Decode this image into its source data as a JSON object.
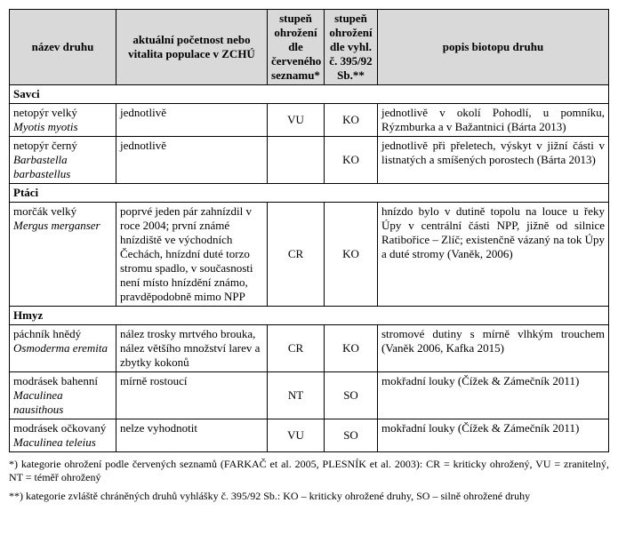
{
  "header": {
    "name": "název druhu",
    "pop": "aktuální početnost nebo vitalita populace v ZCHÚ",
    "s1": "stupeň ohrožení dle červeného seznamu*",
    "s2": "stupeň ohrožení dle vyhl. č. 395/92 Sb.**",
    "bio": "popis biotopu druhu"
  },
  "groups": {
    "savci": "Savci",
    "ptaci": "Ptáci",
    "hmyz": "Hmyz"
  },
  "rows": {
    "netopyr_velky": {
      "cz": "netopýr velký",
      "lat": "Myotis myotis",
      "pop": "jednotlivě",
      "s1": "VU",
      "s2": "KO",
      "bio": "jednotlivě v okolí Pohodlí, u pomníku, Rýzmburka a v Bažantnici (Bárta 2013)"
    },
    "netopyr_cerny": {
      "cz": "netopýr černý",
      "lat": "Barbastella barbastellus",
      "pop": "jednotlivě",
      "s1": "",
      "s2": "KO",
      "bio": "jednotlivě při přeletech, výskyt v jižní části v listnatých a smíšených porostech (Bárta 2013)"
    },
    "morcak": {
      "cz": "morčák velký",
      "lat": "Mergus merganser",
      "pop": "poprvé jeden pár zahnízdil v roce 2004; první známé hnízdiště ve východních Čechách, hnízdní duté torzo stromu spadlo, v současnosti není místo hnízdění známo, pravděpodobně mimo NPP",
      "s1": "CR",
      "s2": "KO",
      "bio": "hnízdo bylo v dutině topolu na louce u řeky Úpy v centrální části NPP, jižně od silnice Ratibořice – Zlíč; existenčně vázaný na tok Úpy a duté stromy (Vaněk, 2006)"
    },
    "pachnik": {
      "cz": "páchník hnědý",
      "lat": "Osmoderma eremita",
      "pop": "nález trosky mrtvého brouka, nález většího množství larev a zbytky kokonů",
      "s1": "CR",
      "s2": "KO",
      "bio": "stromové dutiny s mírně vlhkým trouchem (Vaněk 2006, Kafka 2015)"
    },
    "modrasek_b": {
      "cz": "modrásek bahenní",
      "lat": "Maculinea nausithous",
      "pop": "mírně rostoucí",
      "s1": "NT",
      "s2": "SO",
      "bio": "mokřadní louky (Čížek & Zámečník 2011)"
    },
    "modrasek_o": {
      "cz": "modrásek očkovaný",
      "lat": "Maculinea teleius",
      "pop": "nelze vyhodnotit",
      "s1": "VU",
      "s2": "SO",
      "bio": "mokřadní louky (Čížek & Zámečník 2011)"
    }
  },
  "footnotes": {
    "f1": "*) kategorie ohrožení podle červených seznamů (FARKAČ et al. 2005, PLESNÍK et al. 2003): CR = kriticky ohrožený, VU = zranitelný, NT = téměř ohrožený",
    "f2": "**) kategorie zvláště chráněných druhů vyhlášky č. 395/92 Sb.: KO – kriticky ohrožené druhy, SO – silně ohrožené druhy"
  }
}
